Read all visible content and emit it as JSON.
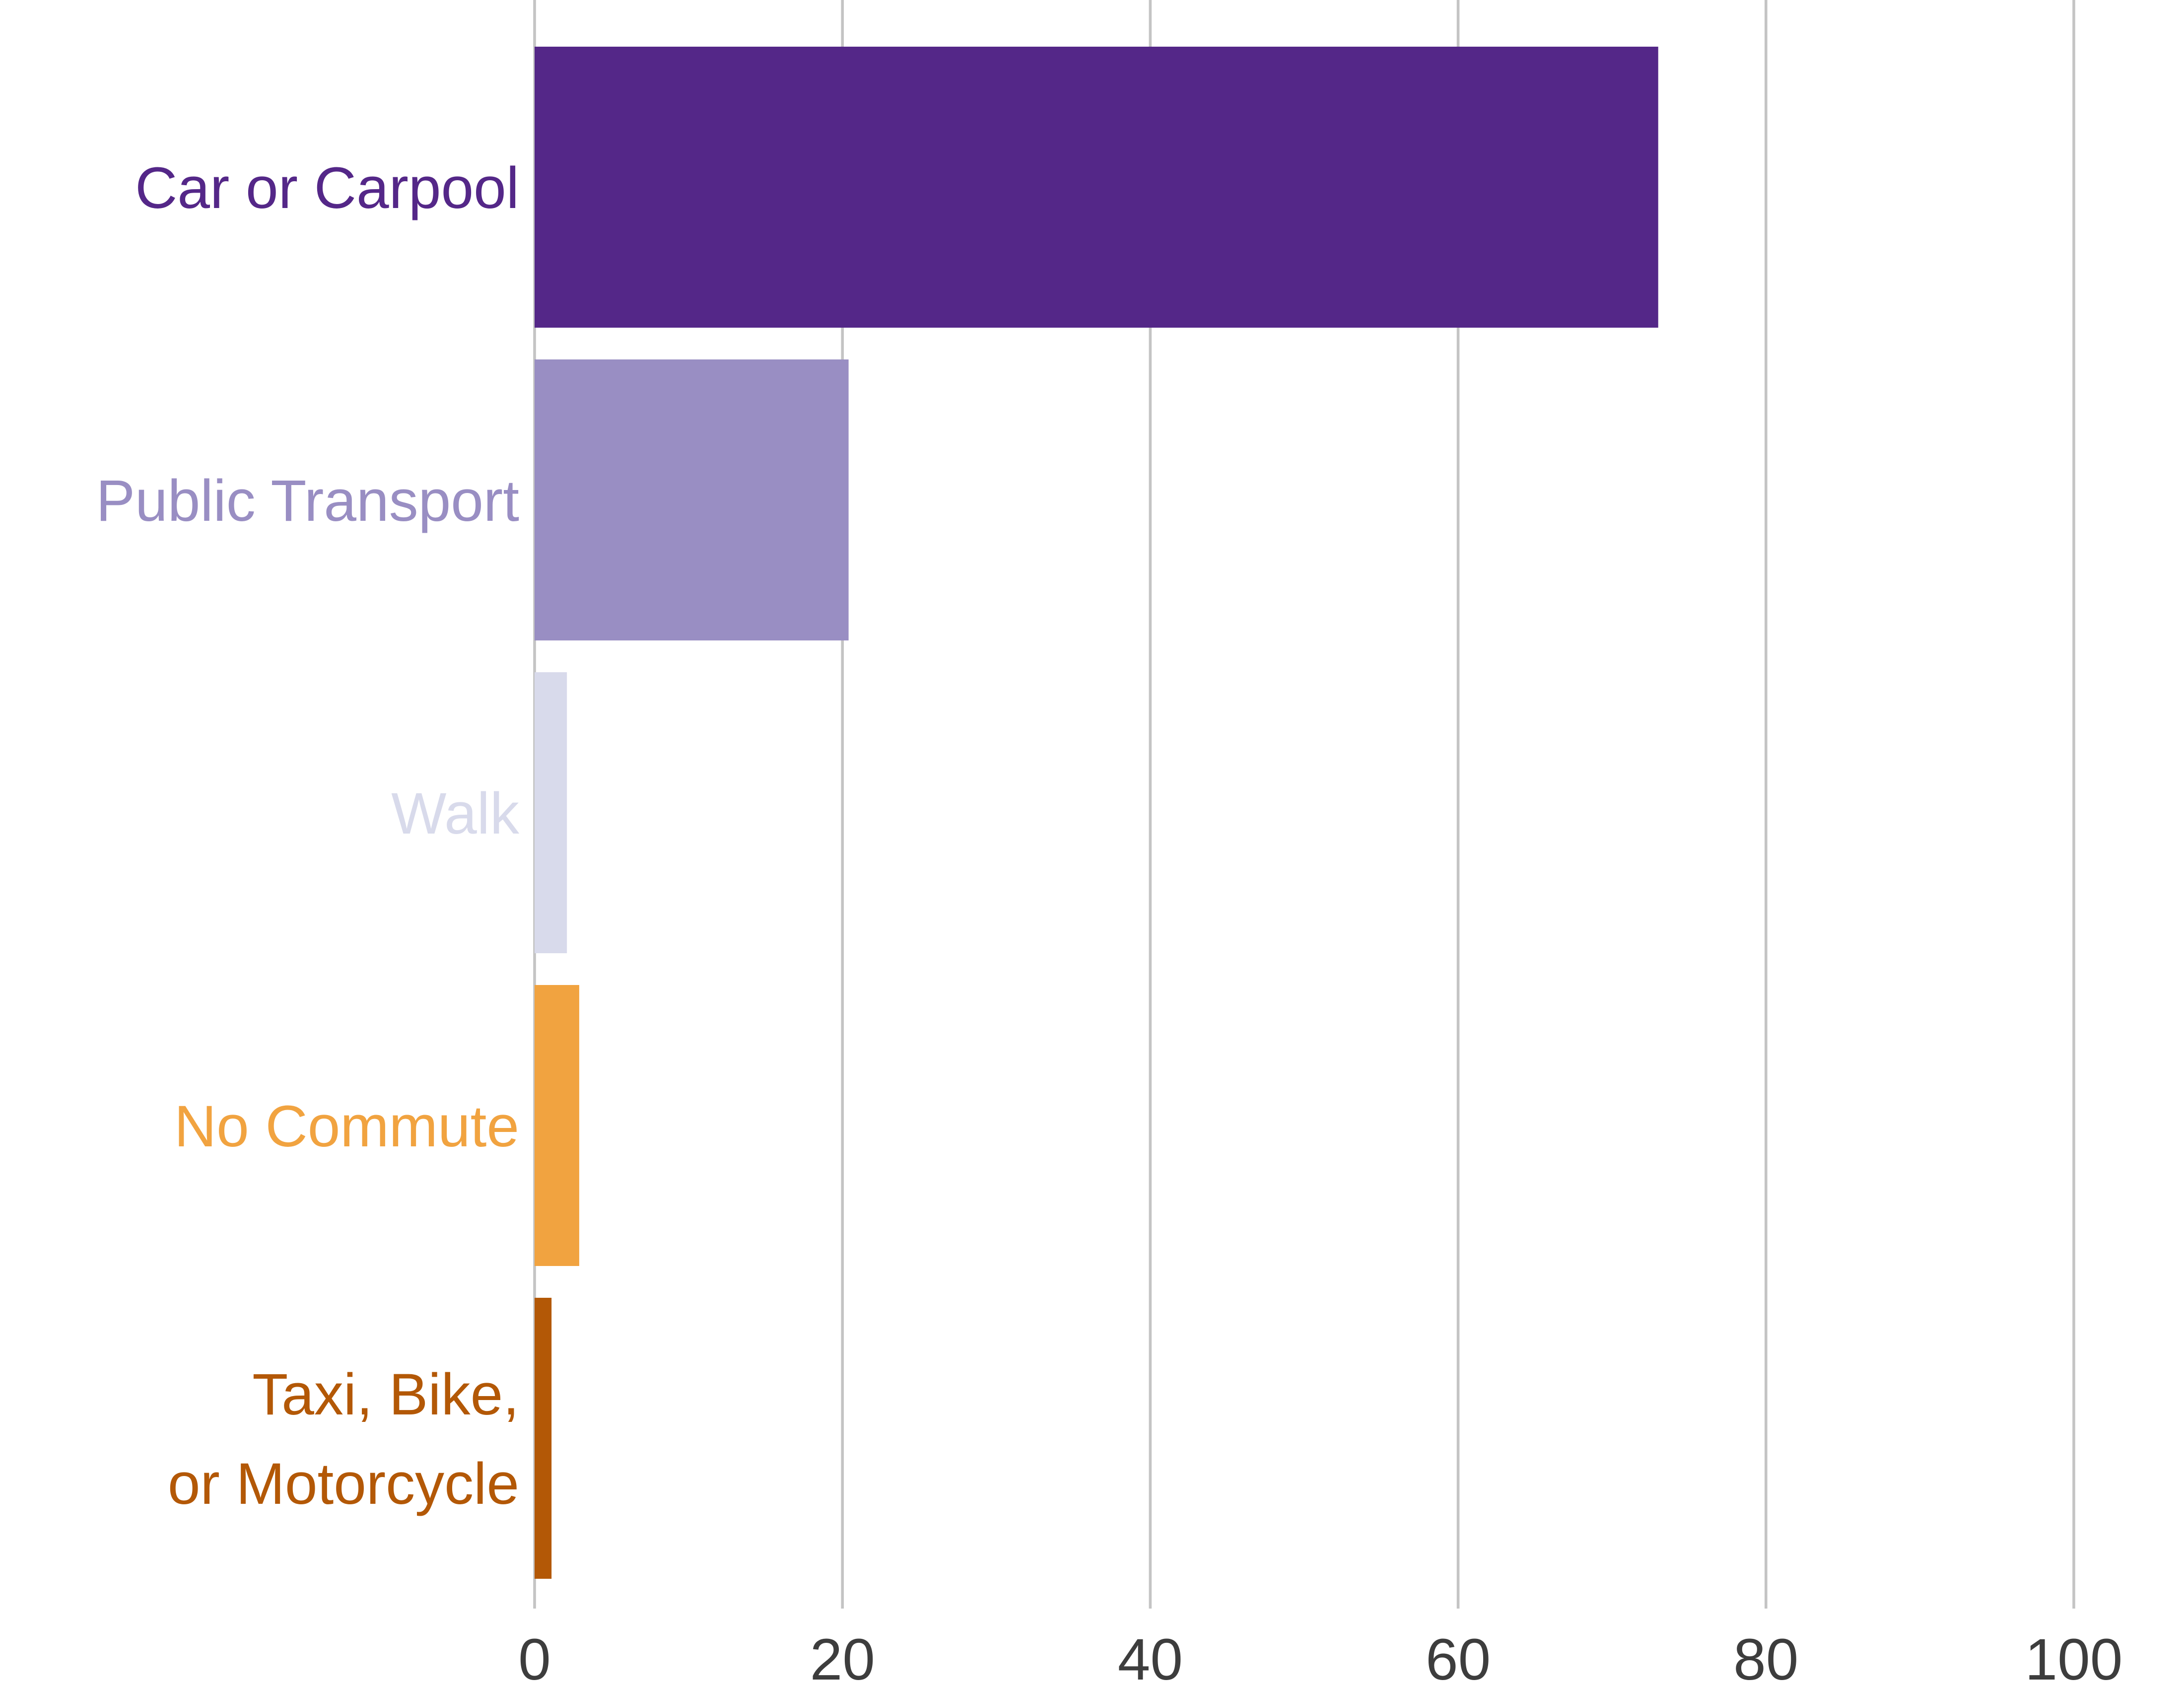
{
  "chart_data": {
    "type": "bar",
    "orientation": "horizontal",
    "title": "",
    "xlabel": "",
    "ylabel": "",
    "categories": [
      [
        "Car or Carpool"
      ],
      [
        "Public Transport"
      ],
      [
        "Walk"
      ],
      [
        "No Commute"
      ],
      [
        "Taxi, Bike,",
        "or Motorcycle"
      ]
    ],
    "values": [
      73,
      20.4,
      2.1,
      2.9,
      1.1
    ],
    "colors": [
      "#542788",
      "#998ec3",
      "#d8daeb",
      "#f1a340",
      "#b35806"
    ],
    "xlim": [
      0,
      100
    ],
    "xticks": [
      0,
      20,
      40,
      60,
      80,
      100
    ],
    "xtick_labels": [
      "0",
      "20",
      "40",
      "60",
      "80",
      "100"
    ],
    "grid": "vertical",
    "legend": "none"
  }
}
